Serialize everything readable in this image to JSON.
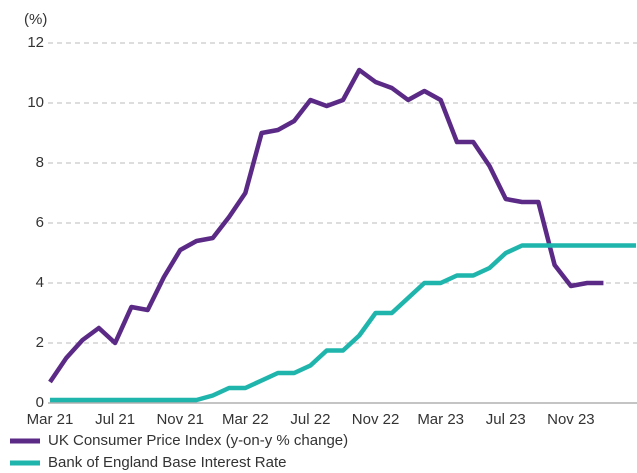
{
  "chart_data": {
    "type": "line",
    "y_label": "(%)",
    "categories": [
      "Mar 21",
      null,
      null,
      null,
      "Jul 21",
      null,
      null,
      null,
      "Nov 21",
      null,
      null,
      null,
      "Mar 22",
      null,
      null,
      null,
      "Jul 22",
      null,
      null,
      null,
      "Nov 22",
      null,
      null,
      null,
      "Mar 23",
      null,
      null,
      null,
      "Jul 23",
      null,
      null,
      null,
      "Nov 23",
      null,
      null,
      null,
      null
    ],
    "series": [
      {
        "name": "UK Consumer Price Index (y-on-y % change)",
        "color": "#5b2a86",
        "values": [
          0.7,
          1.5,
          2.1,
          2.5,
          2.0,
          3.2,
          3.1,
          4.2,
          5.1,
          5.4,
          5.5,
          6.2,
          7.0,
          9.0,
          9.1,
          9.4,
          10.1,
          9.9,
          10.1,
          11.1,
          10.7,
          10.5,
          10.1,
          10.4,
          10.1,
          8.7,
          8.7,
          7.9,
          6.8,
          6.7,
          6.7,
          4.6,
          3.9,
          4.0,
          4.0,
          null,
          null
        ]
      },
      {
        "name": "Bank of England Base Interest Rate",
        "color": "#1fb5ad",
        "values": [
          0.1,
          0.1,
          0.1,
          0.1,
          0.1,
          0.1,
          0.1,
          0.1,
          0.1,
          0.1,
          0.25,
          0.5,
          0.5,
          0.75,
          1.0,
          1.0,
          1.25,
          1.75,
          1.75,
          2.25,
          3.0,
          3.0,
          3.5,
          4.0,
          4.0,
          4.25,
          4.25,
          4.5,
          5.0,
          5.25,
          5.25,
          5.25,
          5.25,
          5.25,
          5.25,
          5.25,
          5.25
        ]
      }
    ],
    "ylim": [
      0,
      12
    ],
    "yticks": [
      0,
      2,
      4,
      6,
      8,
      10,
      12
    ],
    "grid": true
  }
}
